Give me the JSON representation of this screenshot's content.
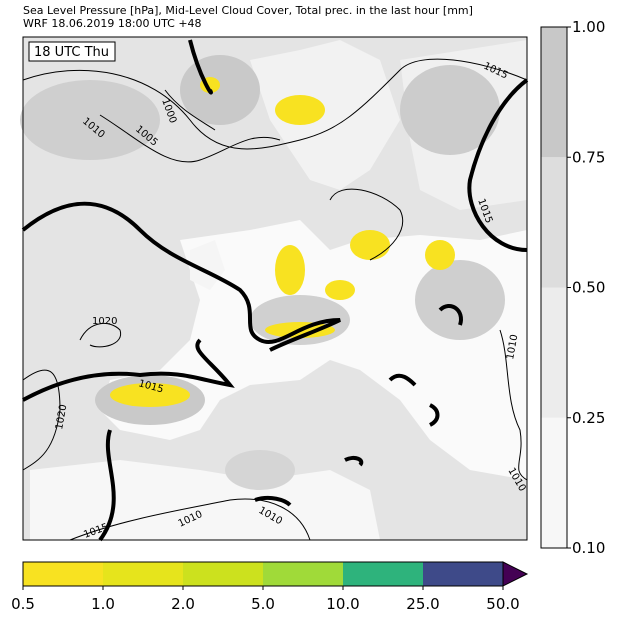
{
  "header": {
    "line1": "Sea Level Pressure [hPa], Mid-Level Cloud Cover, Total prec. in the last hour [mm]",
    "line2": "WRF 18.06.2019 18:00 UTC +48"
  },
  "time_label": "18 UTC Thu",
  "isobar_labels": [
    "1015",
    "1000",
    "1010",
    "1005",
    "1015",
    "1020",
    "1015",
    "1010",
    "1020",
    "1010",
    "1010",
    "1015",
    "1010"
  ],
  "cloud_colorbar": {
    "ticks": [
      "0.10",
      "0.25",
      "0.50",
      "0.75",
      "1.00"
    ],
    "colors": [
      "#f7f7f7",
      "#ececec",
      "#dddddd",
      "#c8c8c8"
    ]
  },
  "precip_colorbar": {
    "ticks": [
      "0.5",
      "1.0",
      "2.0",
      "5.0",
      "10.0",
      "25.0",
      "50.0"
    ],
    "colors": [
      "#f8e221",
      "#e6e41c",
      "#cce11e",
      "#a0da39",
      "#2eb37c",
      "#3e4a89"
    ],
    "extend_color": "#440154"
  }
}
